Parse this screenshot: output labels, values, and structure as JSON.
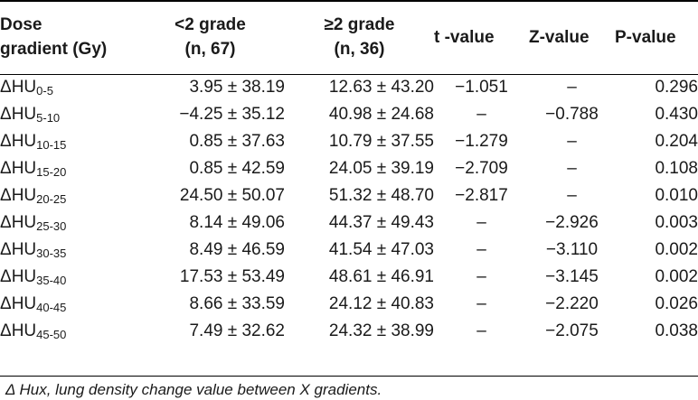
{
  "table": {
    "headers": [
      {
        "line1": "Dose",
        "line2": "gradient (Gy)"
      },
      {
        "line1": "<2 grade",
        "line2": "(n, 67)"
      },
      {
        "line1": "≥2 grade",
        "line2": "(n, 36)"
      },
      {
        "line1": "t -value",
        "line2": ""
      },
      {
        "line1": "Z-value",
        "line2": ""
      },
      {
        "line1": "P-value",
        "line2": ""
      }
    ],
    "rows": [
      {
        "label": "ΔHU",
        "sub": "0-5",
        "lt2": "3.95 ± 38.19",
        "ge2": "12.63 ± 43.20",
        "t": "−1.051",
        "z": "–",
        "p": "0.296"
      },
      {
        "label": "ΔHU",
        "sub": "5-10",
        "lt2": "−4.25 ± 35.12",
        "ge2": "40.98 ± 24.68",
        "t": "–",
        "z": "−0.788",
        "p": "0.430"
      },
      {
        "label": "ΔHU",
        "sub": "10-15",
        "lt2": "0.85 ± 37.63",
        "ge2": "10.79 ± 37.55",
        "t": "−1.279",
        "z": "–",
        "p": "0.204"
      },
      {
        "label": "ΔHU",
        "sub": "15-20",
        "lt2": "0.85 ± 42.59",
        "ge2": "24.05 ± 39.19",
        "t": "−2.709",
        "z": "–",
        "p": "0.108"
      },
      {
        "label": "ΔHU",
        "sub": "20-25",
        "lt2": "24.50 ± 50.07",
        "ge2": "51.32 ± 48.70",
        "t": "−2.817",
        "z": "–",
        "p": "0.010"
      },
      {
        "label": "ΔHU",
        "sub": "25-30",
        "lt2": "8.14 ± 49.06",
        "ge2": "44.37 ± 49.43",
        "t": "–",
        "z": "−2.926",
        "p": "0.003"
      },
      {
        "label": "ΔHU",
        "sub": "30-35",
        "lt2": "8.49 ± 46.59",
        "ge2": "41.54 ± 47.03",
        "t": "–",
        "z": "−3.110",
        "p": "0.002"
      },
      {
        "label": "ΔHU",
        "sub": "35-40",
        "lt2": "17.53 ± 53.49",
        "ge2": "48.61 ± 46.91",
        "t": "–",
        "z": "−3.145",
        "p": "0.002"
      },
      {
        "label": "ΔHU",
        "sub": "40-45",
        "lt2": "8.66 ± 33.59",
        "ge2": "24.12 ± 40.83",
        "t": "–",
        "z": "−2.220",
        "p": "0.026"
      },
      {
        "label": "ΔHU",
        "sub": "45-50",
        "lt2": "7.49 ± 32.62",
        "ge2": "24.32 ± 38.99",
        "t": "–",
        "z": "−2.075",
        "p": "0.038"
      }
    ]
  },
  "footnote": "Δ Hux, lung density change value between X gradients."
}
